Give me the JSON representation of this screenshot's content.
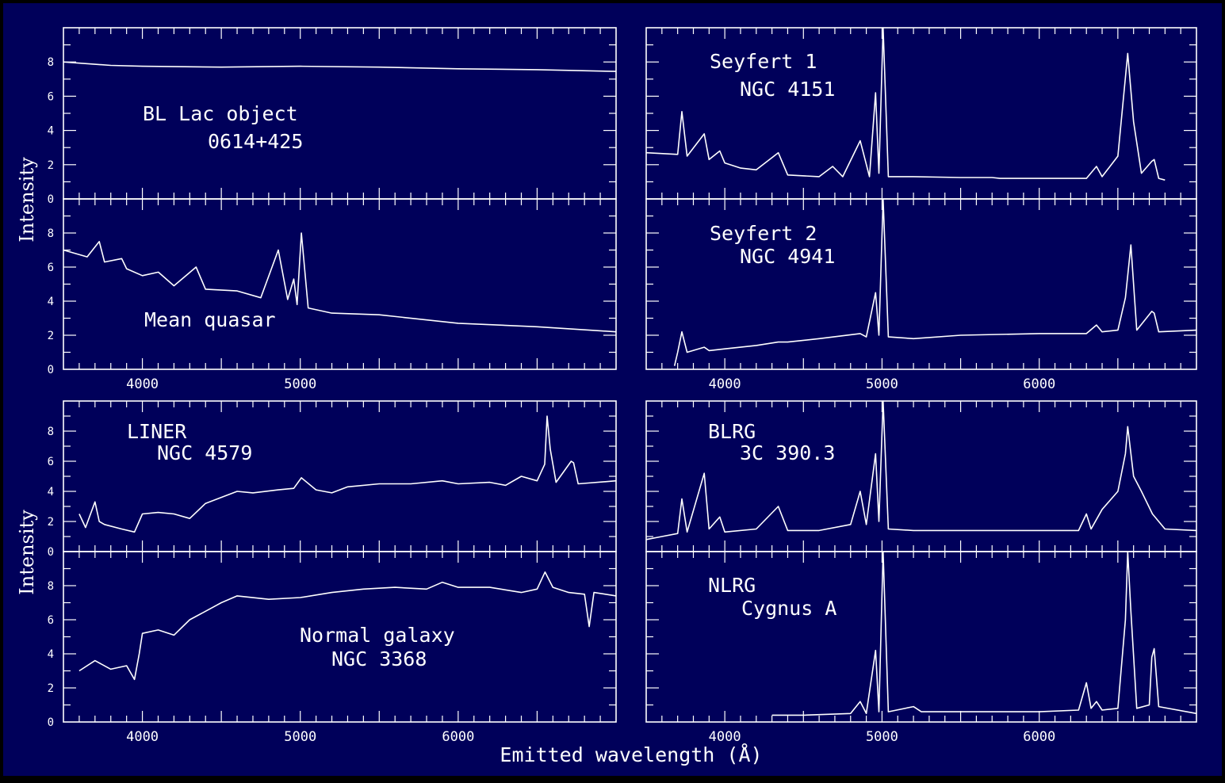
{
  "figure": {
    "background": "#000000",
    "panel_color": "#00005a",
    "ink_color": "#ffffff",
    "xlabel": "Emitted wavelength (Å)",
    "ylabel": "Intensity"
  },
  "chart_data": [
    {
      "type": "line",
      "label_lines": [
        "BL Lac object",
        "0614+425"
      ],
      "xlim": [
        3500,
        7000
      ],
      "ylim": [
        0,
        10
      ],
      "yticks": [
        "0",
        "2",
        "4",
        "6",
        "8"
      ],
      "xticks": [],
      "series": [
        {
          "x": [
            3500,
            3800,
            4000,
            4500,
            5000,
            5500,
            6000,
            6500,
            7000
          ],
          "y": [
            8.0,
            7.8,
            7.75,
            7.7,
            7.75,
            7.7,
            7.6,
            7.55,
            7.45
          ]
        }
      ]
    },
    {
      "type": "line",
      "label_lines": [
        "Mean quasar"
      ],
      "xlim": [
        3500,
        7000
      ],
      "ylim": [
        0,
        10
      ],
      "yticks": [
        "0",
        "2",
        "4",
        "6",
        "8"
      ],
      "xticks": [
        "4000",
        "5000"
      ],
      "series": [
        {
          "x": [
            3500,
            3650,
            3727,
            3760,
            3869,
            3900,
            4000,
            4101,
            4200,
            4340,
            4400,
            4600,
            4750,
            4861,
            4920,
            4959,
            4980,
            5007,
            5050,
            5200,
            5500,
            6000,
            6500,
            7000
          ],
          "y": [
            7.0,
            6.6,
            7.5,
            6.3,
            6.5,
            5.9,
            5.5,
            5.7,
            4.9,
            6.0,
            4.7,
            4.6,
            4.2,
            7.0,
            4.1,
            5.3,
            3.8,
            8.0,
            3.6,
            3.3,
            3.2,
            2.7,
            2.5,
            2.2
          ]
        }
      ]
    },
    {
      "type": "line",
      "label_lines": [
        "Seyfert 1",
        "NGC 4151"
      ],
      "xlim": [
        3500,
        7000
      ],
      "ylim": [
        0,
        10
      ],
      "yticks": [],
      "xticks": [],
      "series": [
        {
          "x": [
            3500,
            3700,
            3727,
            3760,
            3869,
            3900,
            3968,
            4000,
            4101,
            4200,
            4340,
            4400,
            4600,
            4686,
            4750,
            4861,
            4920,
            4959,
            4980,
            5007,
            5040,
            5200,
            5500,
            5700,
            5750,
            6000,
            6300,
            6364,
            6400,
            6500,
            6563,
            6600,
            6650,
            6716,
            6731,
            6760,
            6800
          ],
          "y": [
            2.7,
            2.6,
            5.1,
            2.5,
            3.8,
            2.3,
            2.8,
            2.1,
            1.8,
            1.7,
            2.7,
            1.4,
            1.3,
            1.9,
            1.3,
            3.4,
            1.3,
            6.2,
            1.5,
            10.0,
            1.3,
            1.3,
            1.25,
            1.25,
            1.2,
            1.2,
            1.2,
            1.9,
            1.3,
            2.5,
            8.5,
            4.5,
            1.5,
            2.2,
            2.3,
            1.2,
            1.1
          ]
        }
      ]
    },
    {
      "type": "line",
      "label_lines": [
        "Seyfert 2",
        "NGC 4941"
      ],
      "xlim": [
        3500,
        7000
      ],
      "ylim": [
        0,
        10
      ],
      "yticks": [],
      "xticks": [
        "4000",
        "5000",
        "6000"
      ],
      "series": [
        {
          "x": [
            3680,
            3700,
            3727,
            3760,
            3869,
            3900,
            4000,
            4200,
            4340,
            4400,
            4600,
            4861,
            4900,
            4959,
            4980,
            5007,
            5040,
            5200,
            5500,
            6000,
            6300,
            6364,
            6400,
            6500,
            6548,
            6563,
            6583,
            6620,
            6716,
            6731,
            6760,
            7000
          ],
          "y": [
            0.2,
            1.0,
            2.2,
            1.0,
            1.3,
            1.1,
            1.2,
            1.4,
            1.6,
            1.6,
            1.8,
            2.1,
            1.9,
            4.5,
            2.0,
            10.0,
            1.9,
            1.8,
            2.0,
            2.1,
            2.1,
            2.6,
            2.2,
            2.3,
            4.2,
            5.5,
            7.3,
            2.3,
            3.4,
            3.3,
            2.2,
            2.3
          ]
        }
      ]
    },
    {
      "type": "line",
      "label_lines": [
        "LINER",
        "NGC 4579"
      ],
      "xlim": [
        3500,
        7000
      ],
      "ylim": [
        0,
        10
      ],
      "yticks": [
        "0",
        "2",
        "4",
        "6",
        "8"
      ],
      "xticks": [],
      "series": [
        {
          "x": [
            3600,
            3640,
            3700,
            3727,
            3760,
            3869,
            3950,
            4000,
            4100,
            4200,
            4300,
            4400,
            4500,
            4600,
            4700,
            4861,
            4959,
            5007,
            5100,
            5200,
            5300,
            5500,
            5700,
            5900,
            6000,
            6200,
            6300,
            6400,
            6500,
            6548,
            6563,
            6583,
            6620,
            6716,
            6731,
            6760,
            7000
          ],
          "y": [
            2.5,
            1.6,
            3.3,
            2.0,
            1.8,
            1.5,
            1.3,
            2.5,
            2.6,
            2.5,
            2.2,
            3.2,
            3.6,
            4.0,
            3.9,
            4.1,
            4.2,
            4.9,
            4.1,
            3.9,
            4.3,
            4.5,
            4.5,
            4.7,
            4.5,
            4.6,
            4.4,
            5.0,
            4.7,
            5.8,
            9.0,
            6.8,
            4.6,
            6.0,
            5.9,
            4.5,
            4.7
          ]
        }
      ]
    },
    {
      "type": "line",
      "label_lines": [
        "Normal galaxy",
        "NGC 3368"
      ],
      "xlim": [
        3500,
        7000
      ],
      "ylim": [
        0,
        10
      ],
      "yticks": [
        "0",
        "2",
        "4",
        "6",
        "8"
      ],
      "xticks": [
        "4000",
        "5000",
        "6000"
      ],
      "series": [
        {
          "x": [
            3600,
            3700,
            3800,
            3900,
            3950,
            3980,
            4000,
            4100,
            4200,
            4300,
            4400,
            4500,
            4600,
            4800,
            5000,
            5200,
            5400,
            5600,
            5800,
            5900,
            6000,
            6200,
            6400,
            6500,
            6550,
            6600,
            6700,
            6800,
            6830,
            6860,
            7000
          ],
          "y": [
            3.0,
            3.6,
            3.1,
            3.3,
            2.5,
            4.0,
            5.2,
            5.4,
            5.1,
            6.0,
            6.5,
            7.0,
            7.4,
            7.2,
            7.3,
            7.6,
            7.8,
            7.9,
            7.8,
            8.2,
            7.9,
            7.9,
            7.6,
            7.8,
            8.8,
            7.9,
            7.6,
            7.5,
            5.6,
            7.6,
            7.4
          ]
        }
      ]
    },
    {
      "type": "line",
      "label_lines": [
        "BLRG",
        "3C 390.3"
      ],
      "xlim": [
        3500,
        7000
      ],
      "ylim": [
        0,
        10
      ],
      "yticks": [],
      "xticks": [],
      "series": [
        {
          "x": [
            3500,
            3600,
            3700,
            3727,
            3760,
            3869,
            3900,
            3968,
            4000,
            4200,
            4340,
            4400,
            4600,
            4800,
            4861,
            4900,
            4959,
            4980,
            5007,
            5040,
            5200,
            5500,
            6000,
            6250,
            6300,
            6330,
            6400,
            6500,
            6548,
            6563,
            6600,
            6650,
            6720,
            6800,
            7000
          ],
          "y": [
            0.8,
            1.0,
            1.2,
            3.5,
            1.3,
            5.2,
            1.5,
            2.3,
            1.3,
            1.5,
            3.0,
            1.4,
            1.4,
            1.8,
            4.0,
            1.8,
            6.5,
            2.0,
            10.0,
            1.5,
            1.4,
            1.4,
            1.4,
            1.4,
            2.5,
            1.5,
            2.8,
            4.0,
            6.5,
            8.3,
            5.0,
            4.0,
            2.5,
            1.5,
            1.4
          ]
        }
      ]
    },
    {
      "type": "line",
      "label_lines": [
        "NLRG",
        "Cygnus A"
      ],
      "xlim": [
        3500,
        7000
      ],
      "ylim": [
        0,
        10
      ],
      "yticks": [],
      "xticks": [
        "4000",
        "5000",
        "6000"
      ],
      "series": [
        {
          "x": [
            4300,
            4500,
            4800,
            4861,
            4900,
            4959,
            4980,
            5007,
            5040,
            5200,
            5250,
            5500,
            6000,
            6250,
            6300,
            6330,
            6364,
            6400,
            6500,
            6548,
            6563,
            6583,
            6620,
            6700,
            6716,
            6731,
            6760,
            7000
          ],
          "y": [
            0.4,
            0.4,
            0.5,
            1.2,
            0.5,
            4.2,
            0.6,
            10.0,
            0.6,
            0.9,
            0.6,
            0.6,
            0.6,
            0.7,
            2.3,
            0.8,
            1.2,
            0.7,
            0.8,
            6.0,
            10.0,
            6.5,
            0.8,
            1.0,
            3.8,
            4.3,
            0.9,
            0.5
          ]
        }
      ]
    }
  ]
}
